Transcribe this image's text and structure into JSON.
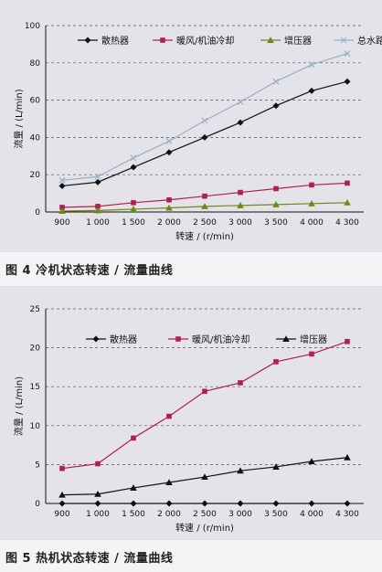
{
  "figures": [
    {
      "caption": "图 4  冷机状态转速 / 流量曲线"
    },
    {
      "caption": "图 5  热机状态转速 / 流量曲线"
    }
  ],
  "chart_data": [
    {
      "type": "line",
      "title": "",
      "xlabel": "转速 / (r/min)",
      "ylabel": "流量 / (L/min)",
      "categories": [
        "900",
        "1 000",
        "1 500",
        "2 000",
        "2 500",
        "3 000",
        "3 500",
        "4 000",
        "4 300"
      ],
      "ylim": [
        0,
        100
      ],
      "yticks": [
        "0",
        "20",
        "40",
        "60",
        "80",
        "100"
      ],
      "grid": true,
      "legend": "top",
      "series": [
        {
          "name": "散热器",
          "color": "#111111",
          "marker": "diamond",
          "values": [
            14,
            16,
            24,
            32,
            40,
            48,
            57,
            65,
            70
          ]
        },
        {
          "name": "暖风/机油冷却",
          "color": "#b02048",
          "marker": "square",
          "values": [
            2.5,
            3,
            5,
            6.5,
            8.5,
            10.5,
            12.5,
            14.5,
            15.5
          ]
        },
        {
          "name": "增压器",
          "color": "#6a8a18",
          "marker": "triangle",
          "values": [
            0.5,
            0.8,
            1.5,
            2.2,
            3,
            3.5,
            4,
            4.5,
            5
          ]
        },
        {
          "name": "总水路",
          "color": "#98b0c4",
          "marker": "x",
          "values": [
            17,
            19,
            29,
            38,
            49,
            59,
            70,
            79,
            85
          ]
        }
      ]
    },
    {
      "type": "line",
      "title": "",
      "xlabel": "转速 / (r/min)",
      "ylabel": "流量 / (L/min)",
      "categories": [
        "900",
        "1 000",
        "1 500",
        "2 000",
        "2 500",
        "3 000",
        "3 500",
        "4 000",
        "4 300"
      ],
      "ylim": [
        0,
        25
      ],
      "yticks": [
        "0",
        "5",
        "10",
        "15",
        "20",
        "25"
      ],
      "grid": true,
      "legend": "top",
      "series": [
        {
          "name": "散热器",
          "color": "#111111",
          "marker": "diamond",
          "values": [
            0,
            0,
            0,
            0,
            0,
            0,
            0,
            0,
            0
          ]
        },
        {
          "name": "暖风/机油冷却",
          "color": "#b02048",
          "marker": "square",
          "values": [
            4.5,
            5.1,
            8.4,
            11.2,
            14.4,
            15.5,
            18.2,
            19.2,
            20.8
          ]
        },
        {
          "name": "增压器",
          "color": "#111111",
          "marker": "triangle",
          "values": [
            1.1,
            1.2,
            2.0,
            2.7,
            3.4,
            4.2,
            4.7,
            5.4,
            5.9
          ]
        }
      ]
    }
  ]
}
